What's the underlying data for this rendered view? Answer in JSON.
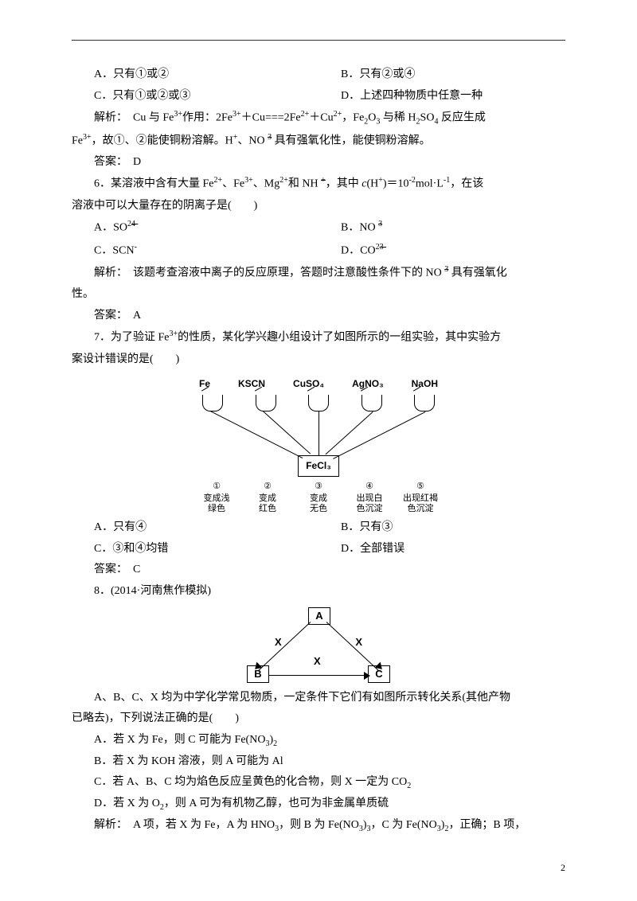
{
  "q5": {
    "optA": "A．只有①或②",
    "optB": "B．只有②或④",
    "optC": "C．只有①或②或③",
    "optD": "D．上述四种物质中任意一种",
    "analysis_label": "解析：",
    "analysis_pre": "Cu 与 Fe",
    "analysis_mid1": "作用：2Fe",
    "analysis_mid2": "＋Cu===2Fe",
    "analysis_mid3": "＋Cu",
    "analysis_mid4": "，Fe",
    "analysis_mid5": "O",
    "analysis_mid6": " 与稀 H",
    "analysis_mid7": "SO",
    "analysis_mid8": " 反应生成",
    "analysis_line2a": "Fe",
    "analysis_line2b": "，故①、②能使铜粉溶解。H",
    "analysis_line2c": "、NO ",
    "analysis_line2d": " 具有强氧化性，能使铜粉溶解。",
    "answer_label": "答案：",
    "answer": "D"
  },
  "q6": {
    "stem_a": "6．某溶液中含有大量 Fe",
    "stem_b": "、Fe",
    "stem_c": "、Mg",
    "stem_d": "和 NH ",
    "stem_e": "，其中 ",
    "stem_c_ital": "c",
    "stem_f": "(H",
    "stem_g": ")＝10",
    "stem_h": "mol·L",
    "stem_i": "，在该",
    "stem_line2": "溶液中可以大量存在的阴离子是(　　)",
    "optA_pre": "A．SO",
    "optB_pre": "B．NO ",
    "optC": "C．SCN",
    "optD_pre": "D．CO",
    "analysis_label": "解析：",
    "analysis_a": "该题考查溶液中离子的反应原理，答题时注意酸性条件下的 NO ",
    "analysis_b": " 具有强氧化",
    "analysis_line2": "性。",
    "answer_label": "答案：",
    "answer": "A"
  },
  "q7": {
    "stem_a": "7．为了验证 Fe",
    "stem_b": "的性质，某化学兴趣小组设计了如图所示的一组实验，其中实验方",
    "stem_line2": "案设计错误的是(　　)",
    "reagents": [
      "Fe",
      "KSCN",
      "CuSO₄",
      "AgNO₃",
      "NaOH"
    ],
    "center": "FeCl₃",
    "results": [
      {
        "num": "①",
        "text": "变成浅\n绿色"
      },
      {
        "num": "②",
        "text": "变成\n红色"
      },
      {
        "num": "③",
        "text": "变成\n无色"
      },
      {
        "num": "④",
        "text": "出现白\n色沉淀"
      },
      {
        "num": "⑤",
        "text": "出现红褐\n色沉淀"
      }
    ],
    "optA": "A．只有④",
    "optB": "B．只有③",
    "optC": "C．③和④均错",
    "optD": "D．全部错误",
    "answer_label": "答案：",
    "answer": "C"
  },
  "q8": {
    "stem": "8．(2014·河南焦作模拟)",
    "nodeA": "A",
    "nodeB": "B",
    "nodeC": "C",
    "edgeX": "X",
    "line1": "A、B、C、X 均为中学化学常见物质，一定条件下它们有如图所示转化关系(其他产物",
    "line2": "已略去)，下列说法正确的是(　　)",
    "optA_a": "A．若 X 为 Fe，则 C 可能为 Fe(NO",
    "optA_b": ")",
    "optB": "B．若 X 为 KOH 溶液，则 A 可能为 Al",
    "optC_a": "C．若 A、B、C 均为焰色反应呈黄色的化合物，则 X 一定为 CO",
    "optD_a": "D．若 X 为 O",
    "optD_b": "，则 A 可为有机物乙醇，也可为非金属单质硫",
    "analysis_label": "解析：",
    "analysis_a": "A 项，若 X 为 Fe，A 为 HNO",
    "analysis_b": "，则 B 为 Fe(NO",
    "analysis_c": ")",
    "analysis_d": "，C 为 Fe(NO",
    "analysis_e": ")",
    "analysis_f": "，正确；B 项，"
  },
  "page_number": "2"
}
